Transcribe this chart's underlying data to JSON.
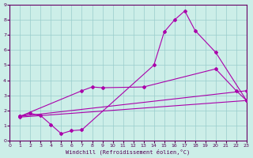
{
  "background_color": "#cceee8",
  "line_color": "#aa00aa",
  "grid_color": "#99cccc",
  "axis_bg": "#cceee8",
  "xlabel": "Windchill (Refroidissement éolien,°C)",
  "xlim": [
    0,
    23
  ],
  "ylim": [
    0,
    9
  ],
  "xticks": [
    0,
    1,
    2,
    3,
    4,
    5,
    6,
    7,
    8,
    9,
    10,
    11,
    12,
    13,
    14,
    15,
    16,
    17,
    18,
    19,
    20,
    21,
    22,
    23
  ],
  "yticks": [
    0,
    1,
    2,
    3,
    4,
    5,
    6,
    7,
    8,
    9
  ],
  "line1_x": [
    1,
    2,
    3,
    4,
    5,
    6,
    7,
    14,
    15,
    16,
    17,
    18,
    20,
    23
  ],
  "line1_y": [
    1.6,
    1.8,
    1.65,
    1.05,
    0.45,
    0.65,
    0.7,
    5.0,
    7.2,
    8.0,
    8.6,
    7.3,
    5.85,
    2.65
  ],
  "line3_x": [
    1,
    7,
    8,
    9,
    13,
    20,
    22,
    23
  ],
  "line3_y": [
    1.6,
    3.3,
    3.55,
    3.5,
    3.55,
    4.75,
    3.3,
    2.65
  ],
  "line4_x": [
    1,
    23
  ],
  "line4_y": [
    1.6,
    3.3
  ],
  "line5_x": [
    1,
    23
  ],
  "line5_y": [
    1.55,
    2.65
  ]
}
